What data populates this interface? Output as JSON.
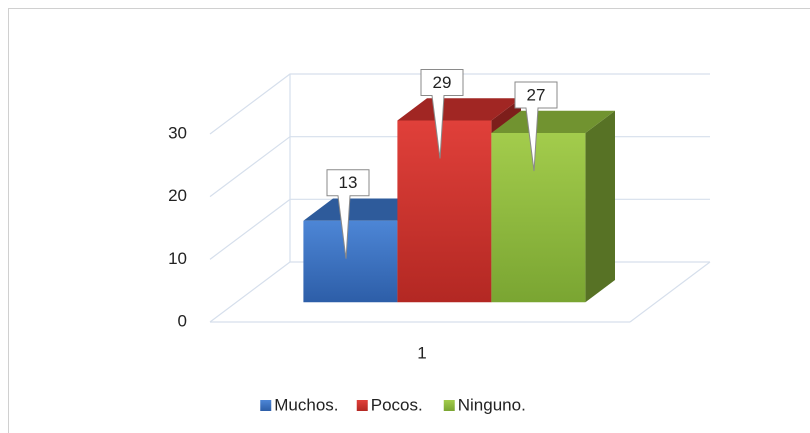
{
  "chart_data": {
    "type": "bar3d",
    "categories": [
      "1"
    ],
    "series": [
      {
        "name": "Muchos.",
        "color": "#3a72c2",
        "values": [
          13
        ]
      },
      {
        "name": "Pocos.",
        "color": "#c9302c",
        "values": [
          29
        ]
      },
      {
        "name": "Ninguno.",
        "color": "#8db83c",
        "values": [
          27
        ]
      }
    ],
    "ylim": [
      0,
      30
    ],
    "yticks": [
      0,
      10,
      20,
      30
    ],
    "grid": true,
    "legend": "bottom"
  }
}
